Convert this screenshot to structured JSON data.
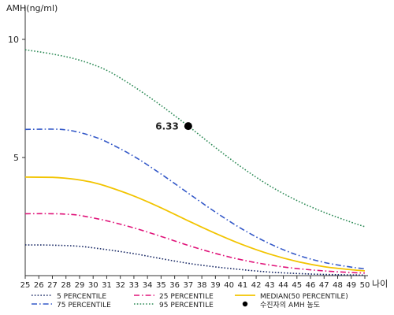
{
  "chart_data": {
    "type": "line",
    "ylabel": "AMH(ng/ml)",
    "xlabel": "나이",
    "x": [
      25,
      26,
      27,
      28,
      29,
      30,
      31,
      32,
      33,
      34,
      35,
      36,
      37,
      38,
      39,
      40,
      41,
      42,
      43,
      44,
      45,
      46,
      47,
      48,
      49,
      50
    ],
    "xlim": [
      25,
      50
    ],
    "ylim": [
      0,
      11
    ],
    "yticks": [
      5,
      10
    ],
    "series": [
      {
        "name": "5 PERCENTILE",
        "color": "#1a2a66",
        "dash": "dotted",
        "x": [
          25,
          27,
          29,
          31,
          33,
          35,
          37,
          39,
          41,
          43,
          45,
          47,
          49,
          50
        ],
        "values": [
          1.3,
          1.29,
          1.24,
          1.1,
          0.93,
          0.72,
          0.52,
          0.37,
          0.25,
          0.15,
          0.09,
          0.05,
          0.03,
          0.02
        ]
      },
      {
        "name": "25 PERCENTILE",
        "color": "#e0147a",
        "dash": "dashdot",
        "x": [
          25,
          27,
          28,
          29,
          31,
          33,
          35,
          37,
          39,
          41,
          43,
          45,
          47,
          49,
          50
        ],
        "values": [
          2.62,
          2.62,
          2.6,
          2.55,
          2.32,
          2.02,
          1.66,
          1.28,
          0.94,
          0.66,
          0.45,
          0.3,
          0.2,
          0.13,
          0.11
        ]
      },
      {
        "name": "MEDIAN(50 PERCENTILE)",
        "color": "#f2c400",
        "dash": "solid",
        "x": [
          25,
          27,
          28,
          29,
          30,
          31,
          33,
          35,
          37,
          39,
          41,
          43,
          45,
          47,
          49,
          50
        ],
        "values": [
          4.17,
          4.16,
          4.12,
          4.05,
          3.94,
          3.78,
          3.37,
          2.87,
          2.32,
          1.79,
          1.31,
          0.91,
          0.6,
          0.38,
          0.25,
          0.2
        ]
      },
      {
        "name": "75 PERCENTILE",
        "color": "#3358c8",
        "dash": "dashdot",
        "x": [
          25,
          27,
          28,
          29,
          30,
          31,
          33,
          35,
          37,
          39,
          41,
          43,
          45,
          47,
          49,
          50
        ],
        "values": [
          6.19,
          6.2,
          6.17,
          6.06,
          5.89,
          5.66,
          5.05,
          4.3,
          3.49,
          2.69,
          1.96,
          1.35,
          0.88,
          0.56,
          0.36,
          0.29
        ]
      },
      {
        "name": "95 PERCENTILE",
        "color": "#2e8b57",
        "dash": "dotted",
        "x": [
          25,
          27,
          29,
          31,
          33,
          35,
          37,
          39,
          41,
          43,
          45,
          47,
          49,
          50
        ],
        "values": [
          9.56,
          9.38,
          9.12,
          8.69,
          8.0,
          7.2,
          6.33,
          5.42,
          4.56,
          3.8,
          3.18,
          2.68,
          2.26,
          2.07
        ]
      }
    ],
    "point": {
      "name": "수진자의 AMH 농도",
      "x": 37,
      "y": 6.33,
      "label": "6.33",
      "color": "#000000"
    },
    "legend": {
      "placement": "bottom",
      "order": [
        "5 PERCENTILE",
        "25 PERCENTILE",
        "MEDIAN(50 PERCENTILE)",
        "75 PERCENTILE",
        "95 PERCENTILE",
        "수진자의 AMH 농도"
      ]
    },
    "grid": false
  }
}
